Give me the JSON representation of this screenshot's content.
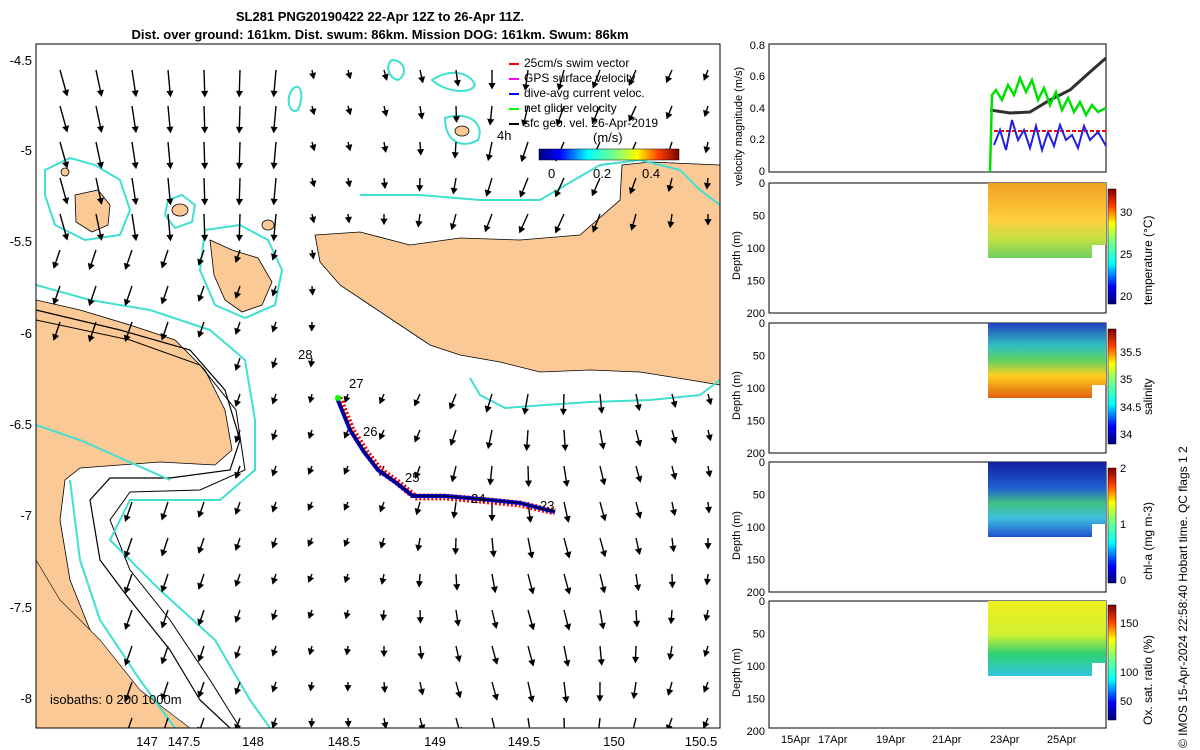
{
  "header": {
    "title_line1": "SL281 PNG20190422 22-Apr 12Z to 26-Apr 11Z.",
    "title_line2": "Dist. over ground: 161km. Dist. swum: 86km. Mission DOG: 161km. Swum: 86km"
  },
  "map": {
    "lon_ticks": [
      "147",
      "147.5",
      "148",
      "148.5",
      "149",
      "149.5",
      "150",
      "150.5"
    ],
    "lat_ticks": [
      "-4.5",
      "-5",
      "-5.5",
      "-6",
      "-6.5",
      "-7",
      "-7.5",
      "-8"
    ],
    "day_labels": [
      "28",
      "27",
      "26",
      "25",
      "24",
      "23"
    ],
    "time_label": "4h",
    "isobaths_label": "isobaths: 0   200  1000m",
    "legend": {
      "items": [
        {
          "label": "25cm/s swim vector",
          "color": "#ff0000"
        },
        {
          "label": "GPS surface velocity",
          "color": "#ff00ff"
        },
        {
          "label": "dive-avg current veloc.",
          "color": "#0000ff"
        },
        {
          "label": "net glider velocity",
          "color": "#00ff00"
        },
        {
          "label": "sfc geo. vel. 26-Apr-2019",
          "color": "#000000"
        }
      ],
      "colorbar_title": "(m/s)",
      "colorbar_ticks": [
        "0",
        "0.2",
        "0.4"
      ]
    },
    "colors": {
      "land": "#fbc996",
      "contour": "#40e0d0",
      "track": "#0000cc"
    }
  },
  "panels": {
    "velocity": {
      "ylabel": "velocity magnitude (m/s)",
      "yticks": [
        "0",
        "0.2",
        "0.4",
        "0.6",
        "0.8"
      ]
    },
    "temperature": {
      "ylabel": "Depth (m)",
      "cbar_label": "temperature (°C)",
      "cbar_ticks": [
        "20",
        "25",
        "30"
      ]
    },
    "salinity": {
      "ylabel": "Depth (m)",
      "cbar_label": "salinity",
      "cbar_ticks": [
        "34",
        "34.5",
        "35",
        "35.5"
      ]
    },
    "chla": {
      "ylabel": "Depth (m)",
      "cbar_label": "chl-a (mg m-3)",
      "cbar_ticks": [
        "0",
        "1",
        "2"
      ]
    },
    "oxygen": {
      "ylabel": "Depth (m)",
      "cbar_label": "Ox. sat. ratio (%)",
      "cbar_ticks": [
        "50",
        "100",
        "150"
      ]
    },
    "depth_ticks": [
      "0",
      "50",
      "100",
      "150",
      "200"
    ],
    "date_ticks": [
      "15Apr",
      "17Apr",
      "19Apr",
      "21Apr",
      "23Apr",
      "25Apr"
    ]
  },
  "credit": "© IMOS 15-Apr-2024 22:58:40 Hobart time. QC flags 1  2"
}
